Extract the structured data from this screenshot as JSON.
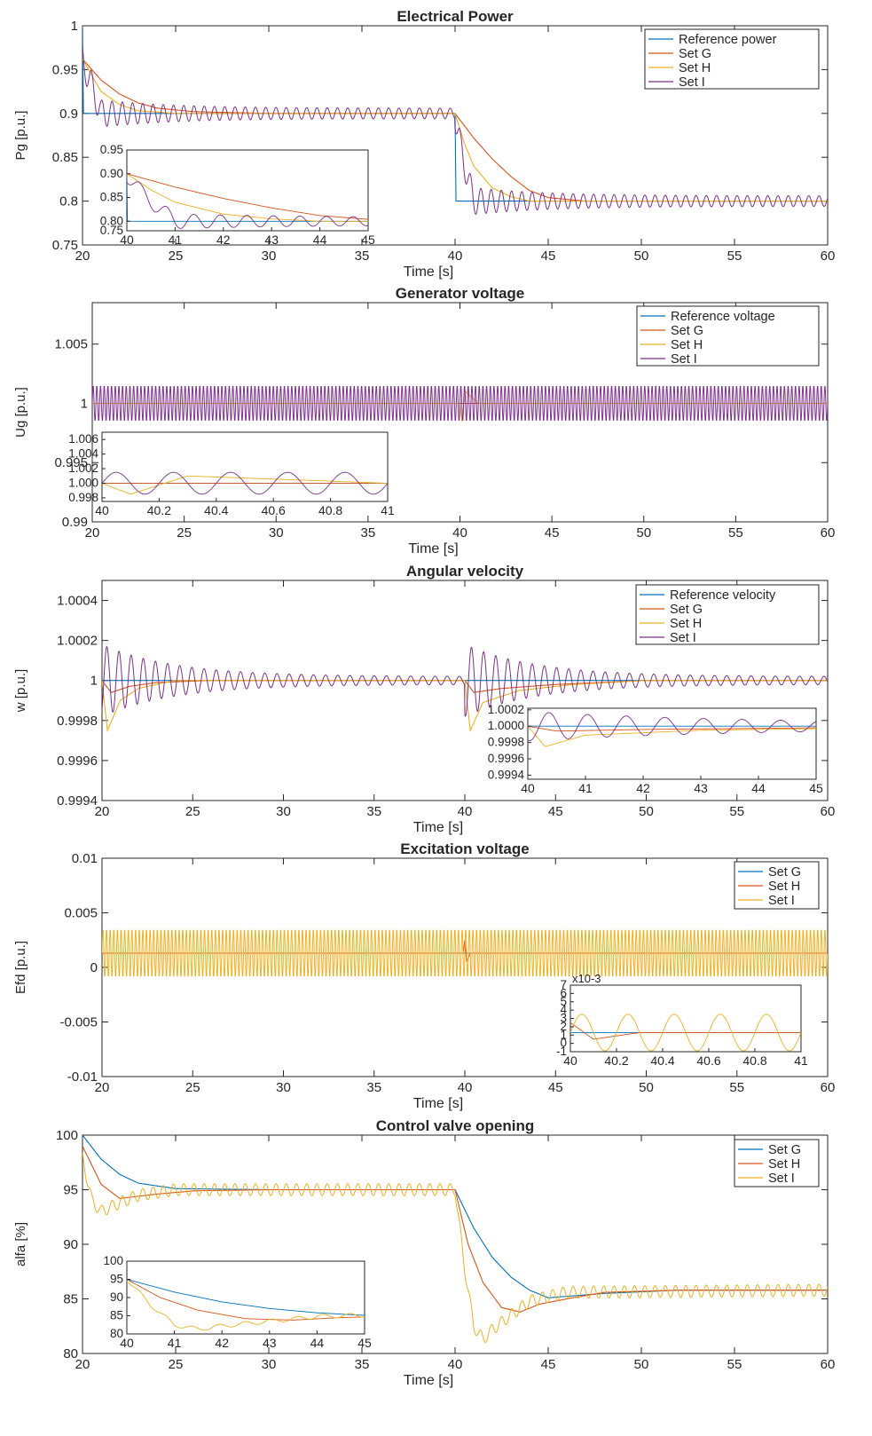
{
  "figure": {
    "background": "#ffffff",
    "axis_color": "#262626",
    "colors": {
      "blue": "#0072BD",
      "orange": "#D95319",
      "yellow": "#EDB120",
      "purple": "#7E2F8E"
    }
  },
  "chart_data": [
    {
      "id": "electrical-power",
      "type": "line",
      "title": "Electrical Power",
      "xlabel": "Time [s]",
      "ylabel": "Pg [p.u.]",
      "xlim": [
        20,
        60
      ],
      "ylim": [
        0.75,
        1
      ],
      "xticks": [
        20,
        25,
        30,
        35,
        40,
        45,
        50,
        55,
        60
      ],
      "xtick_labels": [
        "20",
        "25",
        "30",
        "35",
        "40",
        "45",
        "50",
        "55",
        "60"
      ],
      "yticks": [
        0.75,
        0.8,
        0.85,
        0.9,
        0.95,
        1
      ],
      "ytick_labels": [
        "0.75",
        "0.8",
        "0.85",
        "0.9",
        "0.95",
        "1"
      ],
      "legend_position": "top-right",
      "series": [
        {
          "name": "Reference power",
          "color": "#0072BD",
          "points": [
            [
              20,
              1
            ],
            [
              20.01,
              0.9
            ],
            [
              40,
              0.9
            ],
            [
              40.01,
              0.8
            ],
            [
              60,
              0.8
            ]
          ]
        },
        {
          "name": "Set G",
          "color": "#D95319",
          "points": [
            [
              20,
              0.962
            ],
            [
              21,
              0.938
            ],
            [
              22,
              0.922
            ],
            [
              23,
              0.912
            ],
            [
              24,
              0.906
            ],
            [
              26,
              0.902
            ],
            [
              30,
              0.9
            ],
            [
              40,
              0.9
            ],
            [
              41,
              0.872
            ],
            [
              42,
              0.848
            ],
            [
              43,
              0.828
            ],
            [
              44,
              0.812
            ],
            [
              45,
              0.804
            ],
            [
              47,
              0.8
            ],
            [
              60,
              0.8
            ]
          ]
        },
        {
          "name": "Set H",
          "color": "#EDB120",
          "points": [
            [
              20,
              0.962
            ],
            [
              21,
              0.925
            ],
            [
              22,
              0.91
            ],
            [
              23,
              0.903
            ],
            [
              25,
              0.9
            ],
            [
              40,
              0.9
            ],
            [
              40.5,
              0.866
            ],
            [
              41,
              0.84
            ],
            [
              42,
              0.815
            ],
            [
              43,
              0.805
            ],
            [
              44,
              0.8
            ],
            [
              60,
              0.8
            ]
          ]
        },
        {
          "name": "Set I",
          "color": "#7E2F8E",
          "points": [
            [
              20,
              0.962
            ],
            [
              21,
              0.9
            ],
            [
              25,
              0.9
            ],
            [
              40,
              0.9
            ],
            [
              40.3,
              0.86
            ],
            [
              41,
              0.8
            ],
            [
              60,
              0.8
            ]
          ],
          "oscillation": {
            "amplitude": 0.018,
            "period": 0.55,
            "decay_to": 0.006
          }
        }
      ],
      "inset": {
        "xlim": [
          40,
          45
        ],
        "ylim": [
          0.78,
          0.95
        ],
        "xticks": [
          40,
          41,
          42,
          43,
          44,
          45
        ],
        "xtick_labels": [
          "40",
          "41",
          "42",
          "43",
          "44",
          "45"
        ],
        "yticks": [
          0.8,
          0.85,
          0.9,
          0.95
        ],
        "ytick_labels": [
          "0.80",
          "0.85",
          "0.90",
          "0.95"
        ],
        "extra_ytick_labels": [
          "0.75"
        ]
      }
    },
    {
      "id": "generator-voltage",
      "type": "line",
      "title": "Generator voltage",
      "xlabel": "Time [s]",
      "ylabel": "Ug [p.u.]",
      "xlim": [
        20,
        60
      ],
      "ylim": [
        0.99,
        1.0085
      ],
      "xticks": [
        20,
        25,
        30,
        35,
        40,
        45,
        50,
        55,
        60
      ],
      "xtick_labels": [
        "20",
        "25",
        "30",
        "35",
        "40",
        "45",
        "50",
        "55",
        "60"
      ],
      "yticks": [
        0.99,
        0.995,
        1,
        1.005
      ],
      "ytick_labels": [
        "0.99",
        "0.995",
        "1",
        "1.005"
      ],
      "legend_position": "top-right",
      "series": [
        {
          "name": "Reference voltage",
          "color": "#0072BD",
          "points": [
            [
              20,
              1
            ],
            [
              60,
              1
            ]
          ]
        },
        {
          "name": "Set G",
          "color": "#D95319",
          "points": [
            [
              20,
              1
            ],
            [
              60,
              1
            ]
          ]
        },
        {
          "name": "Set H",
          "color": "#EDB120",
          "points": [
            [
              20,
              1
            ],
            [
              40,
              1
            ],
            [
              40.1,
              0.9985
            ],
            [
              40.3,
              1.001
            ],
            [
              41,
              1
            ],
            [
              60,
              1
            ]
          ]
        },
        {
          "name": "Set I",
          "color": "#7E2F8E",
          "points": [
            [
              20,
              1
            ],
            [
              60,
              1
            ]
          ],
          "oscillation": {
            "amplitude": 0.0015,
            "period": 0.2
          }
        }
      ],
      "inset": {
        "xlim": [
          40,
          41
        ],
        "ylim": [
          0.9975,
          1.007
        ],
        "xticks": [
          40,
          40.2,
          40.4,
          40.6,
          40.8,
          41
        ],
        "xtick_labels": [
          "40",
          "40.2",
          "40.4",
          "40.6",
          "40.8",
          "41"
        ],
        "yticks": [
          0.998,
          1,
          1.002,
          1.004,
          1.006
        ],
        "ytick_labels": [
          "0.998",
          "1.000",
          "1.002",
          "1.004",
          "1.006"
        ]
      }
    },
    {
      "id": "angular-velocity",
      "type": "line",
      "title": "Angular velocity",
      "xlabel": "Time [s]",
      "ylabel": "w [p.u.]",
      "xlim": [
        20,
        60
      ],
      "ylim": [
        0.9994,
        1.0005
      ],
      "xticks": [
        20,
        25,
        30,
        35,
        40,
        45,
        50,
        55,
        60
      ],
      "xtick_labels": [
        "20",
        "25",
        "30",
        "35",
        "40",
        "45",
        "50",
        "55",
        "60"
      ],
      "yticks": [
        0.9994,
        0.9996,
        0.9998,
        1,
        1.0002,
        1.0004
      ],
      "ytick_labels": [
        "0.9994",
        "0.9996",
        "0.9998",
        "1",
        "1.0002",
        "1.0004"
      ],
      "legend_position": "top-right",
      "series": [
        {
          "name": "Reference velocity",
          "color": "#0072BD",
          "points": [
            [
              20,
              1
            ],
            [
              60,
              1
            ]
          ]
        },
        {
          "name": "Set G",
          "color": "#D95319",
          "points": [
            [
              20,
              1
            ],
            [
              20.5,
              0.99994
            ],
            [
              21.5,
              0.99997
            ],
            [
              23,
              0.99999
            ],
            [
              26,
              1
            ],
            [
              40,
              1
            ],
            [
              40.5,
              0.99994
            ],
            [
              42,
              0.99996
            ],
            [
              45,
              0.99998
            ],
            [
              50,
              1
            ],
            [
              60,
              1
            ]
          ]
        },
        {
          "name": "Set H",
          "color": "#EDB120",
          "points": [
            [
              20,
              1
            ],
            [
              20.3,
              0.99975
            ],
            [
              21,
              0.9999
            ],
            [
              22,
              0.99996
            ],
            [
              24,
              1
            ],
            [
              40,
              1
            ],
            [
              40.3,
              0.99975
            ],
            [
              41,
              0.99989
            ],
            [
              43,
              0.99995
            ],
            [
              46,
              0.99998
            ],
            [
              50,
              1
            ],
            [
              60,
              1
            ]
          ]
        },
        {
          "name": "Set I",
          "color": "#7E2F8E",
          "points": [
            [
              20,
              1
            ],
            [
              60,
              1
            ]
          ],
          "oscillation": {
            "amplitude": 0.00018,
            "period": 0.67,
            "decay_to": 2e-05
          }
        }
      ],
      "inset": {
        "xlim": [
          40,
          45
        ],
        "ylim": [
          0.99935,
          1.00022
        ],
        "xticks": [
          40,
          41,
          42,
          43,
          44,
          45
        ],
        "xtick_labels": [
          "40",
          "41",
          "42",
          "43",
          "44",
          "45"
        ],
        "yticks": [
          0.9994,
          0.9996,
          0.9998,
          1,
          1.0002
        ],
        "ytick_labels": [
          "0.9994",
          "0.9996",
          "0.9998",
          "1.0000",
          "1.0002"
        ]
      }
    },
    {
      "id": "excitation-voltage",
      "type": "line",
      "title": "Excitation voltage",
      "xlabel": "Time [s]",
      "ylabel": "Efd [p.u.]",
      "xlim": [
        20,
        60
      ],
      "ylim": [
        -0.01,
        0.01
      ],
      "xticks": [
        20,
        25,
        30,
        35,
        40,
        45,
        50,
        55,
        60
      ],
      "xtick_labels": [
        "20",
        "25",
        "30",
        "35",
        "40",
        "45",
        "50",
        "55",
        "60"
      ],
      "yticks": [
        -0.01,
        -0.005,
        0,
        0.005,
        0.01
      ],
      "ytick_labels": [
        "-0.01",
        "-0.005",
        "0",
        "0.005",
        "0.01"
      ],
      "legend_position": "top-right",
      "series": [
        {
          "name": "Set G",
          "color": "#0072BD",
          "points": [
            [
              20,
              0.0013
            ],
            [
              60,
              0.0013
            ]
          ]
        },
        {
          "name": "Set H",
          "color": "#D95319",
          "points": [
            [
              20,
              0.0013
            ],
            [
              39.9,
              0.0013
            ],
            [
              40,
              0.0025
            ],
            [
              40.1,
              0.0005
            ],
            [
              40.3,
              0.0013
            ],
            [
              60,
              0.0013
            ]
          ]
        },
        {
          "name": "Set I",
          "color": "#EDB120",
          "points": [
            [
              20,
              0.0013
            ],
            [
              60,
              0.0013
            ]
          ],
          "oscillation": {
            "amplitude": 0.0022,
            "period": 0.2
          }
        }
      ],
      "inset": {
        "xlim": [
          40,
          41
        ],
        "ylim": [
          -0.001,
          0.007
        ],
        "xticks": [
          40,
          40.2,
          40.4,
          40.6,
          40.8,
          41
        ],
        "xtick_labels": [
          "40",
          "40.2",
          "40.4",
          "40.6",
          "40.8",
          "41"
        ],
        "yticks": [
          -0.001,
          0,
          0.001,
          0.002,
          0.003,
          0.004,
          0.005,
          0.006,
          0.007
        ],
        "ytick_labels": [
          "-1",
          "0",
          "1",
          "2",
          "3",
          "4",
          "5",
          "6",
          "7"
        ],
        "exponent_label": "x10-3"
      }
    },
    {
      "id": "control-valve-opening",
      "type": "line",
      "title": "Control valve opening",
      "xlabel": "Time [s]",
      "ylabel": "alfa [%]",
      "xlim": [
        20,
        60
      ],
      "ylim": [
        80,
        100
      ],
      "xticks": [
        20,
        25,
        30,
        35,
        40,
        45,
        50,
        55,
        60
      ],
      "xtick_labels": [
        "20",
        "25",
        "30",
        "35",
        "40",
        "45",
        "50",
        "55",
        "60"
      ],
      "yticks": [
        80,
        85,
        90,
        95,
        100
      ],
      "ytick_labels": [
        "80",
        "85",
        "90",
        "95",
        "100"
      ],
      "legend_position": "top-right",
      "series": [
        {
          "name": "Set G",
          "color": "#0072BD",
          "points": [
            [
              20,
              100
            ],
            [
              21,
              97.8
            ],
            [
              22,
              96.4
            ],
            [
              23,
              95.6
            ],
            [
              25,
              95.1
            ],
            [
              30,
              95
            ],
            [
              40,
              95
            ],
            [
              41,
              91.5
            ],
            [
              42,
              88.8
            ],
            [
              43,
              87
            ],
            [
              44,
              85.8
            ],
            [
              45,
              85.1
            ],
            [
              48,
              85.5
            ],
            [
              52,
              85.8
            ],
            [
              60,
              85.8
            ]
          ]
        },
        {
          "name": "Set H",
          "color": "#D95319",
          "points": [
            [
              20,
              99
            ],
            [
              21,
              95.5
            ],
            [
              22,
              94.2
            ],
            [
              24,
              94.6
            ],
            [
              26,
              94.9
            ],
            [
              30,
              95
            ],
            [
              40,
              95
            ],
            [
              40.7,
              90
            ],
            [
              41.5,
              86.5
            ],
            [
              42.5,
              84.2
            ],
            [
              43.5,
              83.8
            ],
            [
              44.5,
              84.5
            ],
            [
              46,
              85
            ],
            [
              48,
              85.6
            ],
            [
              52,
              85.8
            ],
            [
              60,
              85.8
            ]
          ]
        },
        {
          "name": "Set I",
          "color": "#EDB120",
          "points": [
            [
              20,
              98
            ],
            [
              20.5,
              94
            ],
            [
              21,
              93
            ],
            [
              22,
              93.8
            ],
            [
              23,
              94.5
            ],
            [
              25,
              95
            ],
            [
              40,
              95
            ],
            [
              40.5,
              88
            ],
            [
              41,
              82.5
            ],
            [
              41.5,
              81.3
            ],
            [
              42,
              82.2
            ],
            [
              43,
              83.5
            ],
            [
              44,
              84.8
            ],
            [
              46,
              85.6
            ],
            [
              60,
              85.8
            ]
          ],
          "oscillation": {
            "amplitude": 0.55,
            "period": 0.55
          }
        }
      ],
      "inset": {
        "xlim": [
          40,
          45
        ],
        "ylim": [
          80,
          100
        ],
        "xticks": [
          40,
          41,
          42,
          43,
          44,
          45
        ],
        "xtick_labels": [
          "40",
          "41",
          "42",
          "43",
          "44",
          "45"
        ],
        "yticks": [
          80,
          85,
          90,
          95,
          100
        ],
        "ytick_labels": [
          "80",
          "85",
          "90",
          "95",
          "100"
        ]
      }
    }
  ]
}
